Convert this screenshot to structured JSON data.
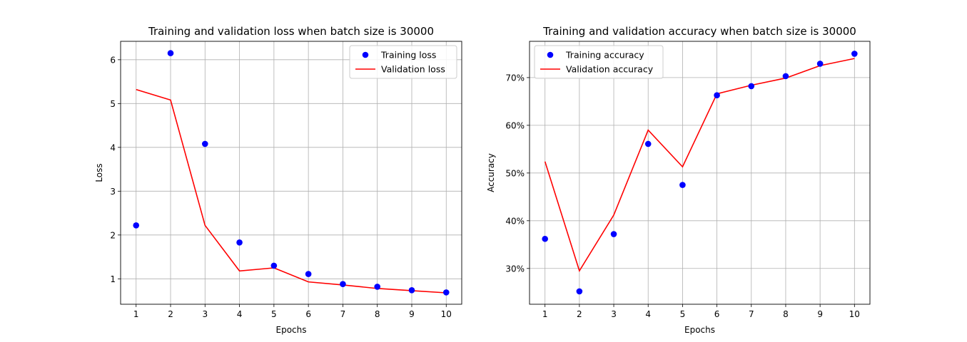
{
  "chart_data": [
    {
      "type": "line",
      "title": "Training and validation loss when batch size is 30000",
      "xlabel": "Epochs",
      "ylabel": "Loss",
      "xlim": [
        0.55,
        10.45
      ],
      "ylim": [
        0.42,
        6.42
      ],
      "x_ticks": [
        1,
        2,
        3,
        4,
        5,
        6,
        7,
        8,
        9,
        10
      ],
      "y_ticks": [
        1,
        2,
        3,
        4,
        5,
        6
      ],
      "y_tick_labels": [
        "1",
        "2",
        "3",
        "4",
        "5",
        "6"
      ],
      "grid": true,
      "legend_position": "top-right",
      "series": [
        {
          "name": "Training loss",
          "kind": "scatter",
          "color": "#0000ff",
          "x": [
            1,
            2,
            3,
            4,
            5,
            6,
            7,
            8,
            9,
            10
          ],
          "values": [
            2.22,
            6.15,
            4.08,
            1.83,
            1.3,
            1.11,
            0.88,
            0.82,
            0.74,
            0.69
          ]
        },
        {
          "name": "Validation loss",
          "kind": "line",
          "color": "#ff0000",
          "x": [
            1,
            2,
            3,
            4,
            5,
            6,
            7,
            8,
            9,
            10
          ],
          "values": [
            5.32,
            5.08,
            2.22,
            1.18,
            1.25,
            0.93,
            0.86,
            0.78,
            0.73,
            0.68
          ]
        }
      ]
    },
    {
      "type": "line",
      "title": "Training and validation accuracy when batch size is 30000",
      "xlabel": "Epochs",
      "ylabel": "Accuracy",
      "xlim": [
        0.55,
        10.45
      ],
      "ylim": [
        22.5,
        77.6
      ],
      "x_ticks": [
        1,
        2,
        3,
        4,
        5,
        6,
        7,
        8,
        9,
        10
      ],
      "y_ticks": [
        30,
        40,
        50,
        60,
        70
      ],
      "y_tick_labels": [
        "30%",
        "40%",
        "50%",
        "60%",
        "70%"
      ],
      "grid": true,
      "legend_position": "top-left",
      "series": [
        {
          "name": "Training accuracy",
          "kind": "scatter",
          "color": "#0000ff",
          "x": [
            1,
            2,
            3,
            4,
            5,
            6,
            7,
            8,
            9,
            10
          ],
          "values": [
            36.2,
            25.2,
            37.2,
            56.1,
            47.5,
            66.3,
            68.2,
            70.3,
            72.9,
            75.0
          ]
        },
        {
          "name": "Validation accuracy",
          "kind": "line",
          "color": "#ff0000",
          "x": [
            1,
            2,
            3,
            4,
            5,
            6,
            7,
            8,
            9,
            10
          ],
          "values": [
            52.4,
            29.5,
            41.2,
            59.0,
            51.3,
            66.6,
            68.4,
            69.9,
            72.5,
            74.0
          ]
        }
      ]
    }
  ]
}
